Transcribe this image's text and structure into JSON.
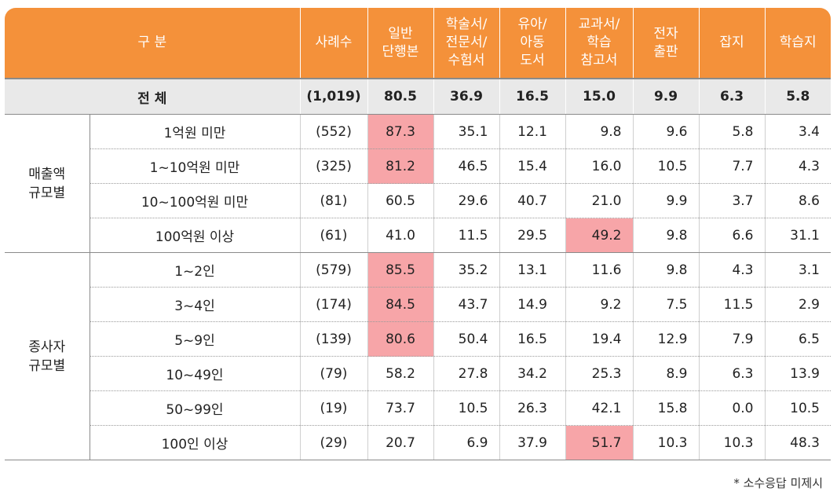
{
  "columns": [
    "사례수",
    "일반 단행본",
    "학술서/ 전문서/ 수험서",
    "유아/ 아동 도서",
    "교과서/ 학습 참고서",
    "전자 출판",
    "잡지",
    "학습지"
  ],
  "header": {
    "category": "구   분",
    "count": "사례수",
    "col1": [
      "일반",
      "단행본"
    ],
    "col2": [
      "학술서/",
      "전문서/",
      "수험서"
    ],
    "col3": [
      "유아/",
      "아동",
      "도서"
    ],
    "col4": [
      "교과서/",
      "학습",
      "참고서"
    ],
    "col5": [
      "전자",
      "출판"
    ],
    "col6": "잡지",
    "col7": "학습지"
  },
  "total": {
    "label": "전   체",
    "count": "(1,019)",
    "values": [
      "80.5",
      "36.9",
      "16.5",
      "15.0",
      "9.9",
      "6.3",
      "5.8"
    ]
  },
  "groups": [
    {
      "label_lines": [
        "매출액",
        "규모별"
      ],
      "rows": [
        {
          "label": "1억원 미만",
          "count": "(552)",
          "values": [
            "87.3",
            "35.1",
            "12.1",
            "9.8",
            "9.6",
            "5.8",
            "3.4"
          ],
          "highlight": [
            0
          ]
        },
        {
          "label": "1~10억원 미만",
          "count": "(325)",
          "values": [
            "81.2",
            "46.5",
            "15.4",
            "16.0",
            "10.5",
            "7.7",
            "4.3"
          ],
          "highlight": [
            0
          ]
        },
        {
          "label": "10~100억원 미만",
          "count": "(81)",
          "values": [
            "60.5",
            "29.6",
            "40.7",
            "21.0",
            "9.9",
            "3.7",
            "8.6"
          ],
          "highlight": []
        },
        {
          "label": "100억원 이상",
          "count": "(61)",
          "values": [
            "41.0",
            "11.5",
            "29.5",
            "49.2",
            "9.8",
            "6.6",
            "31.1"
          ],
          "highlight": [
            3
          ]
        }
      ]
    },
    {
      "label_lines": [
        "종사자",
        "규모별"
      ],
      "rows": [
        {
          "label": "1~2인",
          "count": "(579)",
          "values": [
            "85.5",
            "35.2",
            "13.1",
            "11.6",
            "9.8",
            "4.3",
            "3.1"
          ],
          "highlight": [
            0
          ]
        },
        {
          "label": "3~4인",
          "count": "(174)",
          "values": [
            "84.5",
            "43.7",
            "14.9",
            "9.2",
            "7.5",
            "11.5",
            "2.9"
          ],
          "highlight": [
            0
          ]
        },
        {
          "label": "5~9인",
          "count": "(139)",
          "values": [
            "80.6",
            "50.4",
            "16.5",
            "19.4",
            "12.9",
            "7.9",
            "6.5"
          ],
          "highlight": [
            0
          ]
        },
        {
          "label": "10~49인",
          "count": "(79)",
          "values": [
            "58.2",
            "27.8",
            "34.2",
            "25.3",
            "8.9",
            "6.3",
            "13.9"
          ],
          "highlight": []
        },
        {
          "label": "50~99인",
          "count": "(19)",
          "values": [
            "73.7",
            "10.5",
            "26.3",
            "42.1",
            "15.8",
            "0.0",
            "10.5"
          ],
          "highlight": []
        },
        {
          "label": "100인 이상",
          "count": "(29)",
          "values": [
            "20.7",
            "6.9",
            "37.9",
            "51.7",
            "10.3",
            "10.3",
            "48.3"
          ],
          "highlight": [
            3
          ]
        }
      ]
    }
  ],
  "note": "* 소수응답 미제시",
  "colors": {
    "header_bg": "#f4913a",
    "total_bg": "#e9e9e9",
    "highlight": "#f7a5a8"
  }
}
